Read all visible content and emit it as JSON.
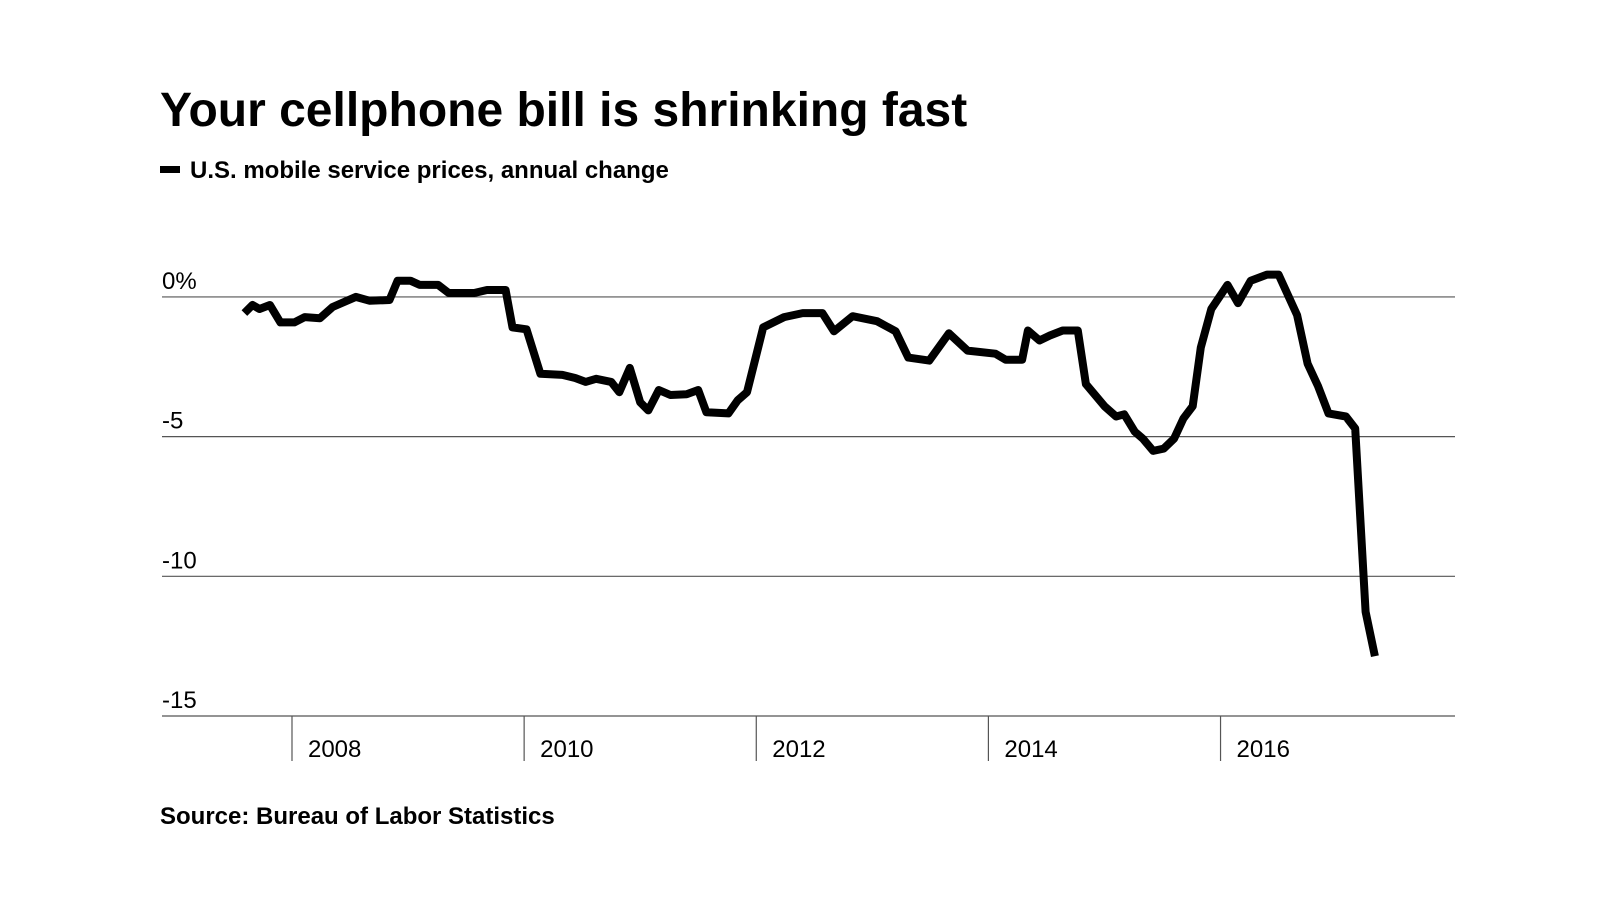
{
  "chart_data": {
    "type": "line",
    "title": "Your cellphone bill is shrinking fast",
    "source": "Source: Bureau of Labor Statistics",
    "series": [
      {
        "name": "U.S. mobile service prices, annual change",
        "color": "#000000",
        "x": [
          2007.59,
          2007.66,
          2007.72,
          2007.81,
          2007.9,
          2008.02,
          2008.11,
          2008.24,
          2008.35,
          2008.55,
          2008.67,
          2008.84,
          2008.91,
          2009.02,
          2009.1,
          2009.26,
          2009.35,
          2009.57,
          2009.68,
          2009.84,
          2009.9,
          2010.02,
          2010.14,
          2010.33,
          2010.44,
          2010.53,
          2010.62,
          2010.75,
          2010.82,
          2010.91,
          2011.0,
          2011.07,
          2011.16,
          2011.26,
          2011.4,
          2011.5,
          2011.57,
          2011.76,
          2011.84,
          2011.92,
          2012.06,
          2012.24,
          2012.4,
          2012.57,
          2012.67,
          2012.83,
          2013.04,
          2013.2,
          2013.31,
          2013.49,
          2013.66,
          2013.82,
          2014.06,
          2014.15,
          2014.29,
          2014.34,
          2014.44,
          2014.53,
          2014.64,
          2014.77,
          2014.84,
          2015.0,
          2015.1,
          2015.17,
          2015.26,
          2015.33,
          2015.42,
          2015.51,
          2015.6,
          2015.68,
          2015.76,
          2015.83,
          2015.92,
          2016.06,
          2016.15,
          2016.26,
          2016.4,
          2016.5,
          2016.66,
          2016.75,
          2016.84,
          2016.93,
          2017.08,
          2017.16,
          2017.25,
          2017.33
        ],
        "values": [
          -0.58,
          -0.29,
          -0.43,
          -0.29,
          -0.91,
          -0.91,
          -0.72,
          -0.76,
          -0.36,
          0,
          -0.14,
          -0.11,
          0.58,
          0.58,
          0.43,
          0.43,
          0.14,
          0.14,
          0.25,
          0.25,
          -1.09,
          -1.16,
          -2.75,
          -2.79,
          -2.9,
          -3.04,
          -2.93,
          -3.04,
          -3.41,
          -2.54,
          -3.77,
          -4.06,
          -3.33,
          -3.51,
          -3.48,
          -3.33,
          -4.13,
          -4.17,
          -3.7,
          -3.41,
          -1.09,
          -0.72,
          -0.58,
          -0.58,
          -1.23,
          -0.69,
          -0.87,
          -1.23,
          -2.17,
          -2.28,
          -1.3,
          -1.92,
          -2.03,
          -2.25,
          -2.25,
          -1.2,
          -1.56,
          -1.38,
          -1.2,
          -1.2,
          -3.12,
          -3.91,
          -4.28,
          -4.2,
          -4.82,
          -5.07,
          -5.51,
          -5.43,
          -5.07,
          -4.35,
          -3.91,
          -1.81,
          -0.43,
          0.43,
          -0.22,
          0.58,
          0.8,
          0.8,
          -0.65,
          -2.39,
          -3.19,
          -4.17,
          -4.28,
          -4.71,
          -11.27,
          -12.86
        ]
      }
    ],
    "xlim": [
      2006.88,
      2018.02
    ],
    "xticks": [
      2008,
      2010,
      2012,
      2014,
      2016
    ],
    "ylim": [
      -15,
      1
    ],
    "yticks": [
      {
        "value": 0,
        "label": "0%"
      },
      -5,
      -10,
      -15
    ],
    "grid": true
  }
}
